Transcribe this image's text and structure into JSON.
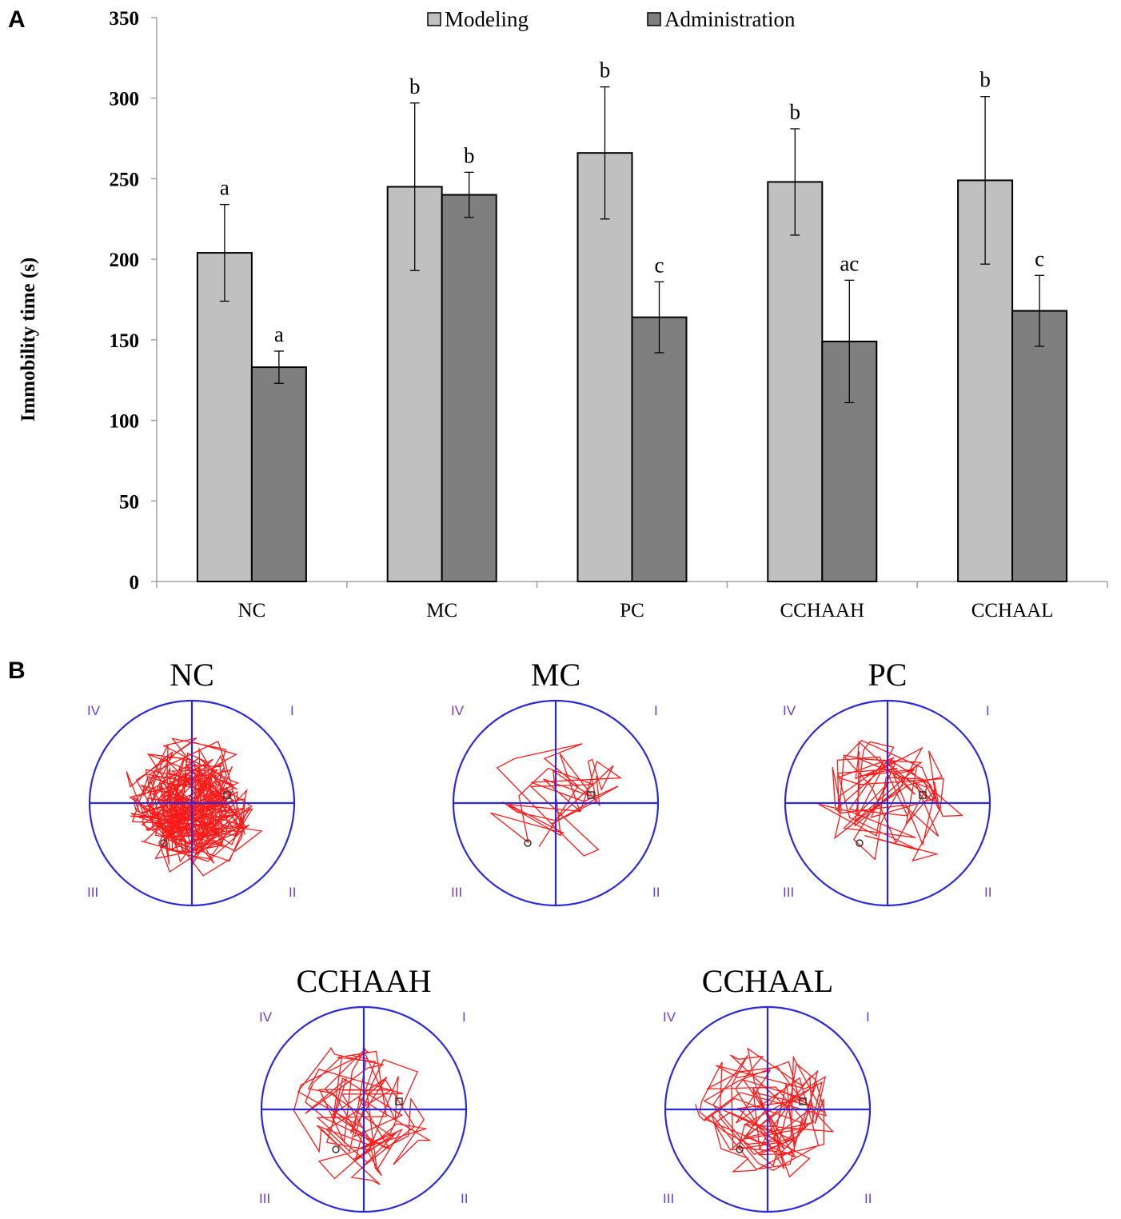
{
  "panels": {
    "a": "A",
    "b": "B"
  },
  "chart_data": {
    "type": "bar",
    "title": "",
    "xlabel": "",
    "ylabel": "Immobility time (s)",
    "ylim": [
      0,
      350
    ],
    "yticks": [
      0,
      50,
      100,
      150,
      200,
      250,
      300,
      350
    ],
    "categories": [
      "NC",
      "MC",
      "PC",
      "CCHAAH",
      "CCHAAL"
    ],
    "legend_position": "top",
    "series": [
      {
        "name": "Modeling",
        "color": "#c0c0c0",
        "values": [
          204,
          245,
          266,
          248,
          249
        ],
        "errors": [
          30,
          52,
          41,
          33,
          52
        ],
        "letters": [
          "a",
          "b",
          "b",
          "b",
          "b"
        ]
      },
      {
        "name": "Administration",
        "color": "#7f7f7f",
        "values": [
          133,
          240,
          164,
          149,
          168
        ],
        "errors": [
          10,
          14,
          22,
          38,
          22
        ],
        "letters": [
          "a",
          "b",
          "c",
          "ac",
          "c"
        ]
      }
    ]
  },
  "tracks": {
    "quadrants": {
      "q1": "I",
      "q2": "II",
      "q3": "III",
      "q4": "IV"
    },
    "colors": {
      "circle": "#2a2adc",
      "path": "#ff1a1a"
    },
    "groups": [
      {
        "title": "NC",
        "density": 260
      },
      {
        "title": "MC",
        "density": 40
      },
      {
        "title": "PC",
        "density": 90
      },
      {
        "title": "CCHAAH",
        "density": 90
      },
      {
        "title": "CCHAAL",
        "density": 110
      }
    ]
  }
}
